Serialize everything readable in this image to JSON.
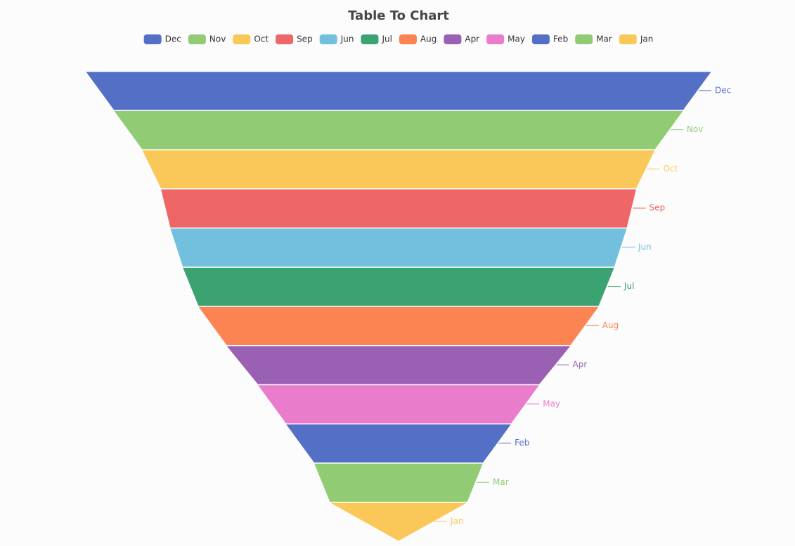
{
  "chart_data": {
    "type": "funnel",
    "title": "Table To Chart",
    "categories": [
      "Dec",
      "Nov",
      "Oct",
      "Sep",
      "Jun",
      "Jul",
      "Aug",
      "Apr",
      "May",
      "Feb",
      "Mar",
      "Jan"
    ],
    "values": [
      100,
      91,
      82,
      76,
      73,
      69,
      64,
      55,
      45,
      36,
      27,
      22
    ],
    "colors": [
      "#5470c6",
      "#91cc75",
      "#fac858",
      "#ee6666",
      "#73c0de",
      "#3ba272",
      "#fc8452",
      "#9a60b4",
      "#ea7ccc",
      "#5470c6",
      "#91cc75",
      "#fac858"
    ],
    "legend": "top"
  }
}
